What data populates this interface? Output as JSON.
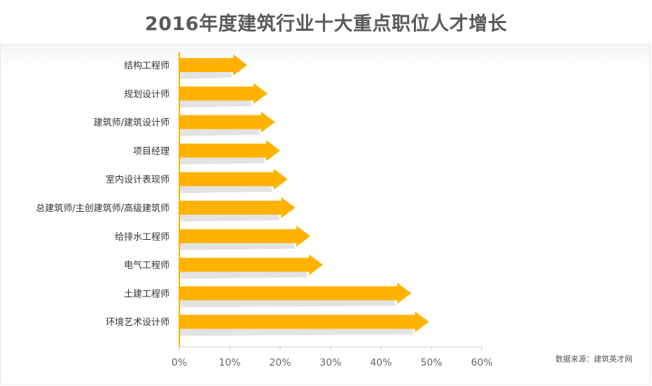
{
  "chart_data": {
    "type": "bar",
    "orientation": "horizontal",
    "title": "2016年度建筑行业十大重点职位人才增长",
    "categories": [
      "结构工程师",
      "规划设计师",
      "建筑师/建筑设计师",
      "项目经理",
      "室内设计表现师",
      "总建筑师/主创建筑师/高级建筑师",
      "给排水工程师",
      "电气工程师",
      "土建工程师",
      "环境艺术设计师"
    ],
    "values": [
      13.5,
      17.5,
      19,
      20,
      21.5,
      23,
      26,
      28.5,
      46,
      49.5
    ],
    "xlim": [
      0,
      60
    ],
    "xticks": [
      "0%",
      "10%",
      "20%",
      "30%",
      "40%",
      "50%",
      "60%"
    ],
    "xtick_values": [
      0,
      10,
      20,
      30,
      40,
      50,
      60
    ],
    "bar_color": "#FFB300",
    "shadow_color": "#DEDEDE",
    "axis_color": "#FFB300",
    "grid": false,
    "legend": "none"
  },
  "source_note": "数据来源：建筑英才网"
}
